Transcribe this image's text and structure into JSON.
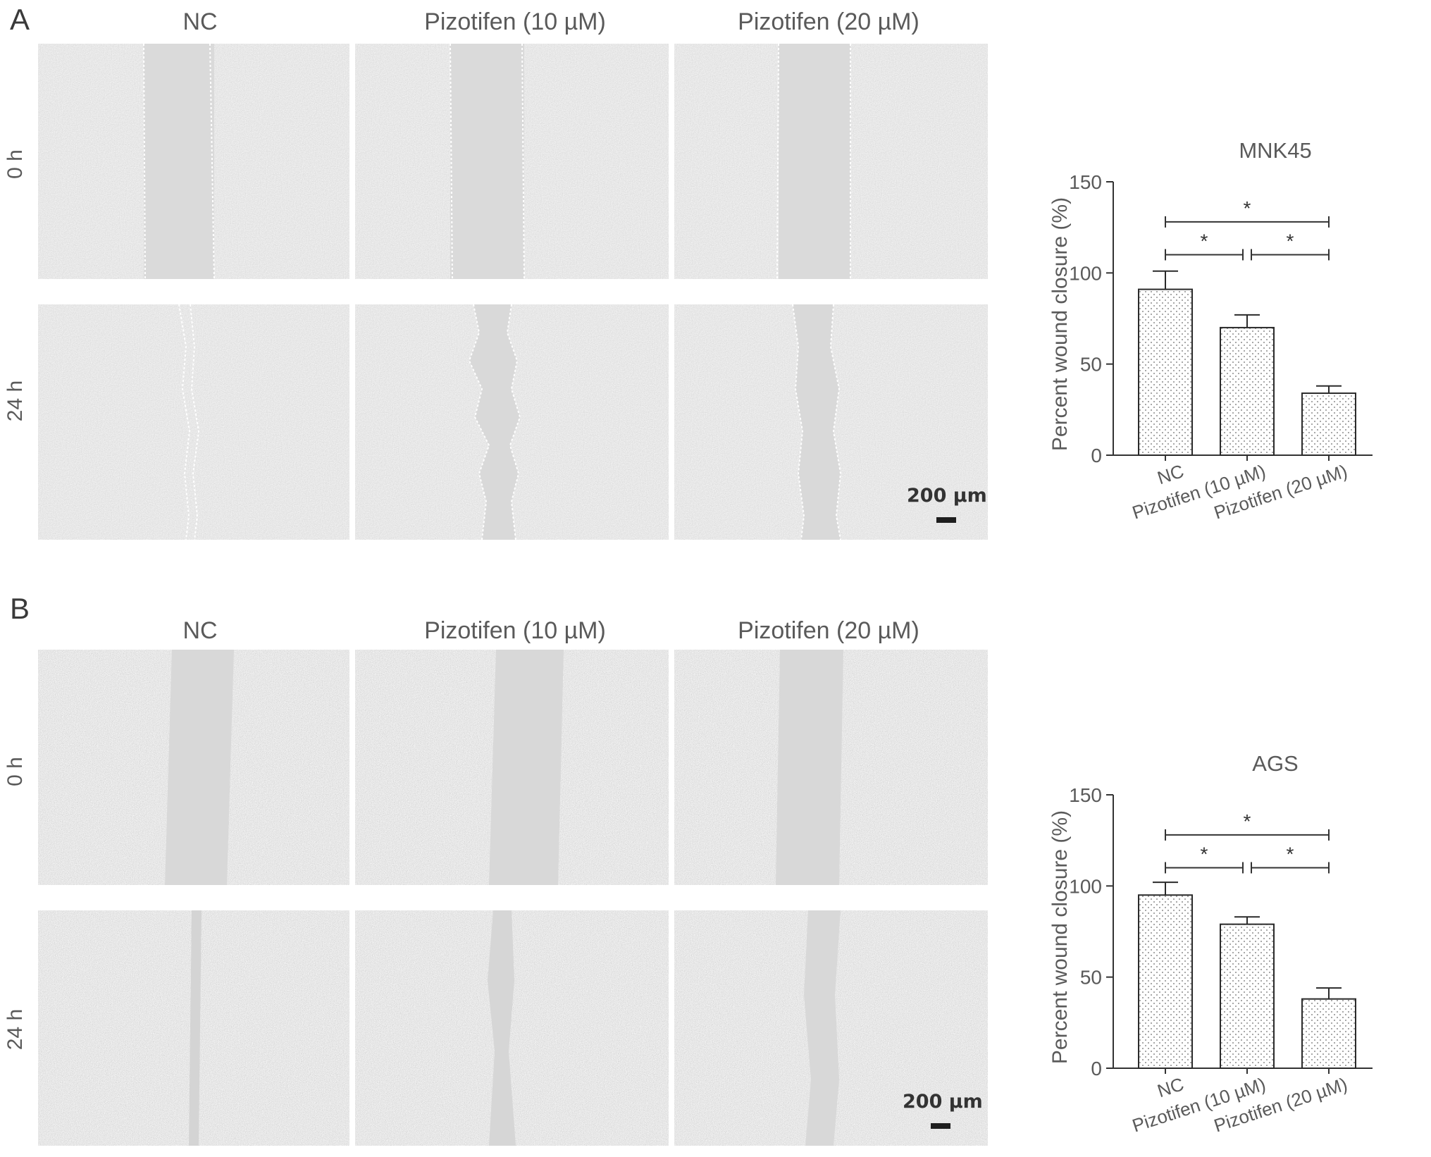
{
  "colors": {
    "axis": "#333333",
    "text": "#5a5a5a",
    "bar_stroke": "#2a2a2a",
    "tile_bg": "#d6d6d6",
    "wound": "#dadada"
  },
  "panels": [
    {
      "letter": "A",
      "columns": [
        "NC",
        "Pizotifen (10 µM)",
        "Pizotifen (20 µM)"
      ],
      "rows": [
        "0 h",
        "24 h"
      ],
      "scale_bar": "200 µm",
      "micrographs": [
        {
          "row": "0 h",
          "column": "NC",
          "name": "micrograph-a-0h-nc"
        },
        {
          "row": "0 h",
          "column": "Pizotifen (10 µM)",
          "name": "micrograph-a-0h-10um"
        },
        {
          "row": "0 h",
          "column": "Pizotifen (20 µM)",
          "name": "micrograph-a-0h-20um"
        },
        {
          "row": "24 h",
          "column": "NC",
          "name": "micrograph-a-24h-nc"
        },
        {
          "row": "24 h",
          "column": "Pizotifen (10 µM)",
          "name": "micrograph-a-24h-10um"
        },
        {
          "row": "24 h",
          "column": "Pizotifen (20 µM)",
          "name": "micrograph-a-24h-20um"
        }
      ]
    },
    {
      "letter": "B",
      "columns": [
        "NC",
        "Pizotifen (10 µM)",
        "Pizotifen (20 µM)"
      ],
      "rows": [
        "0 h",
        "24 h"
      ],
      "scale_bar": "200 µm",
      "micrographs": [
        {
          "row": "0 h",
          "column": "NC",
          "name": "micrograph-b-0h-nc"
        },
        {
          "row": "0 h",
          "column": "Pizotifen (10 µM)",
          "name": "micrograph-b-0h-10um"
        },
        {
          "row": "0 h",
          "column": "Pizotifen (20 µM)",
          "name": "micrograph-b-0h-20um"
        },
        {
          "row": "24 h",
          "column": "NC",
          "name": "micrograph-b-24h-nc"
        },
        {
          "row": "24 h",
          "column": "Pizotifen (10 µM)",
          "name": "micrograph-b-24h-10um"
        },
        {
          "row": "24 h",
          "column": "Pizotifen (20 µM)",
          "name": "micrograph-b-24h-20um"
        }
      ]
    }
  ],
  "chart_data": [
    {
      "type": "bar",
      "title": "MNK45",
      "xlabel": "",
      "ylabel": "Percent wound closure (%)",
      "categories": [
        "NC",
        "Pizotifen (10 µM)",
        "Pizotifen (20 µM)"
      ],
      "values": [
        91,
        70,
        34
      ],
      "errors": [
        10,
        7,
        4
      ],
      "ylim": [
        0,
        150
      ],
      "yticks": [
        0,
        50,
        100,
        150
      ],
      "bar_pattern": "dotted",
      "grid": false,
      "significance": [
        {
          "from": 0,
          "to": 2,
          "label": "*"
        },
        {
          "from": 0,
          "to": 1,
          "label": "*"
        },
        {
          "from": 1,
          "to": 2,
          "label": "*"
        }
      ]
    },
    {
      "type": "bar",
      "title": "AGS",
      "xlabel": "",
      "ylabel": "Percent wound closure (%)",
      "categories": [
        "NC",
        "Pizotifen (10 µM)",
        "Pizotifen (20 µM)"
      ],
      "values": [
        95,
        79,
        38
      ],
      "errors": [
        7,
        4,
        6
      ],
      "ylim": [
        0,
        150
      ],
      "yticks": [
        0,
        50,
        100,
        150
      ],
      "bar_pattern": "dotted",
      "grid": false,
      "significance": [
        {
          "from": 0,
          "to": 2,
          "label": "*"
        },
        {
          "from": 0,
          "to": 1,
          "label": "*"
        },
        {
          "from": 1,
          "to": 2,
          "label": "*"
        }
      ]
    }
  ]
}
